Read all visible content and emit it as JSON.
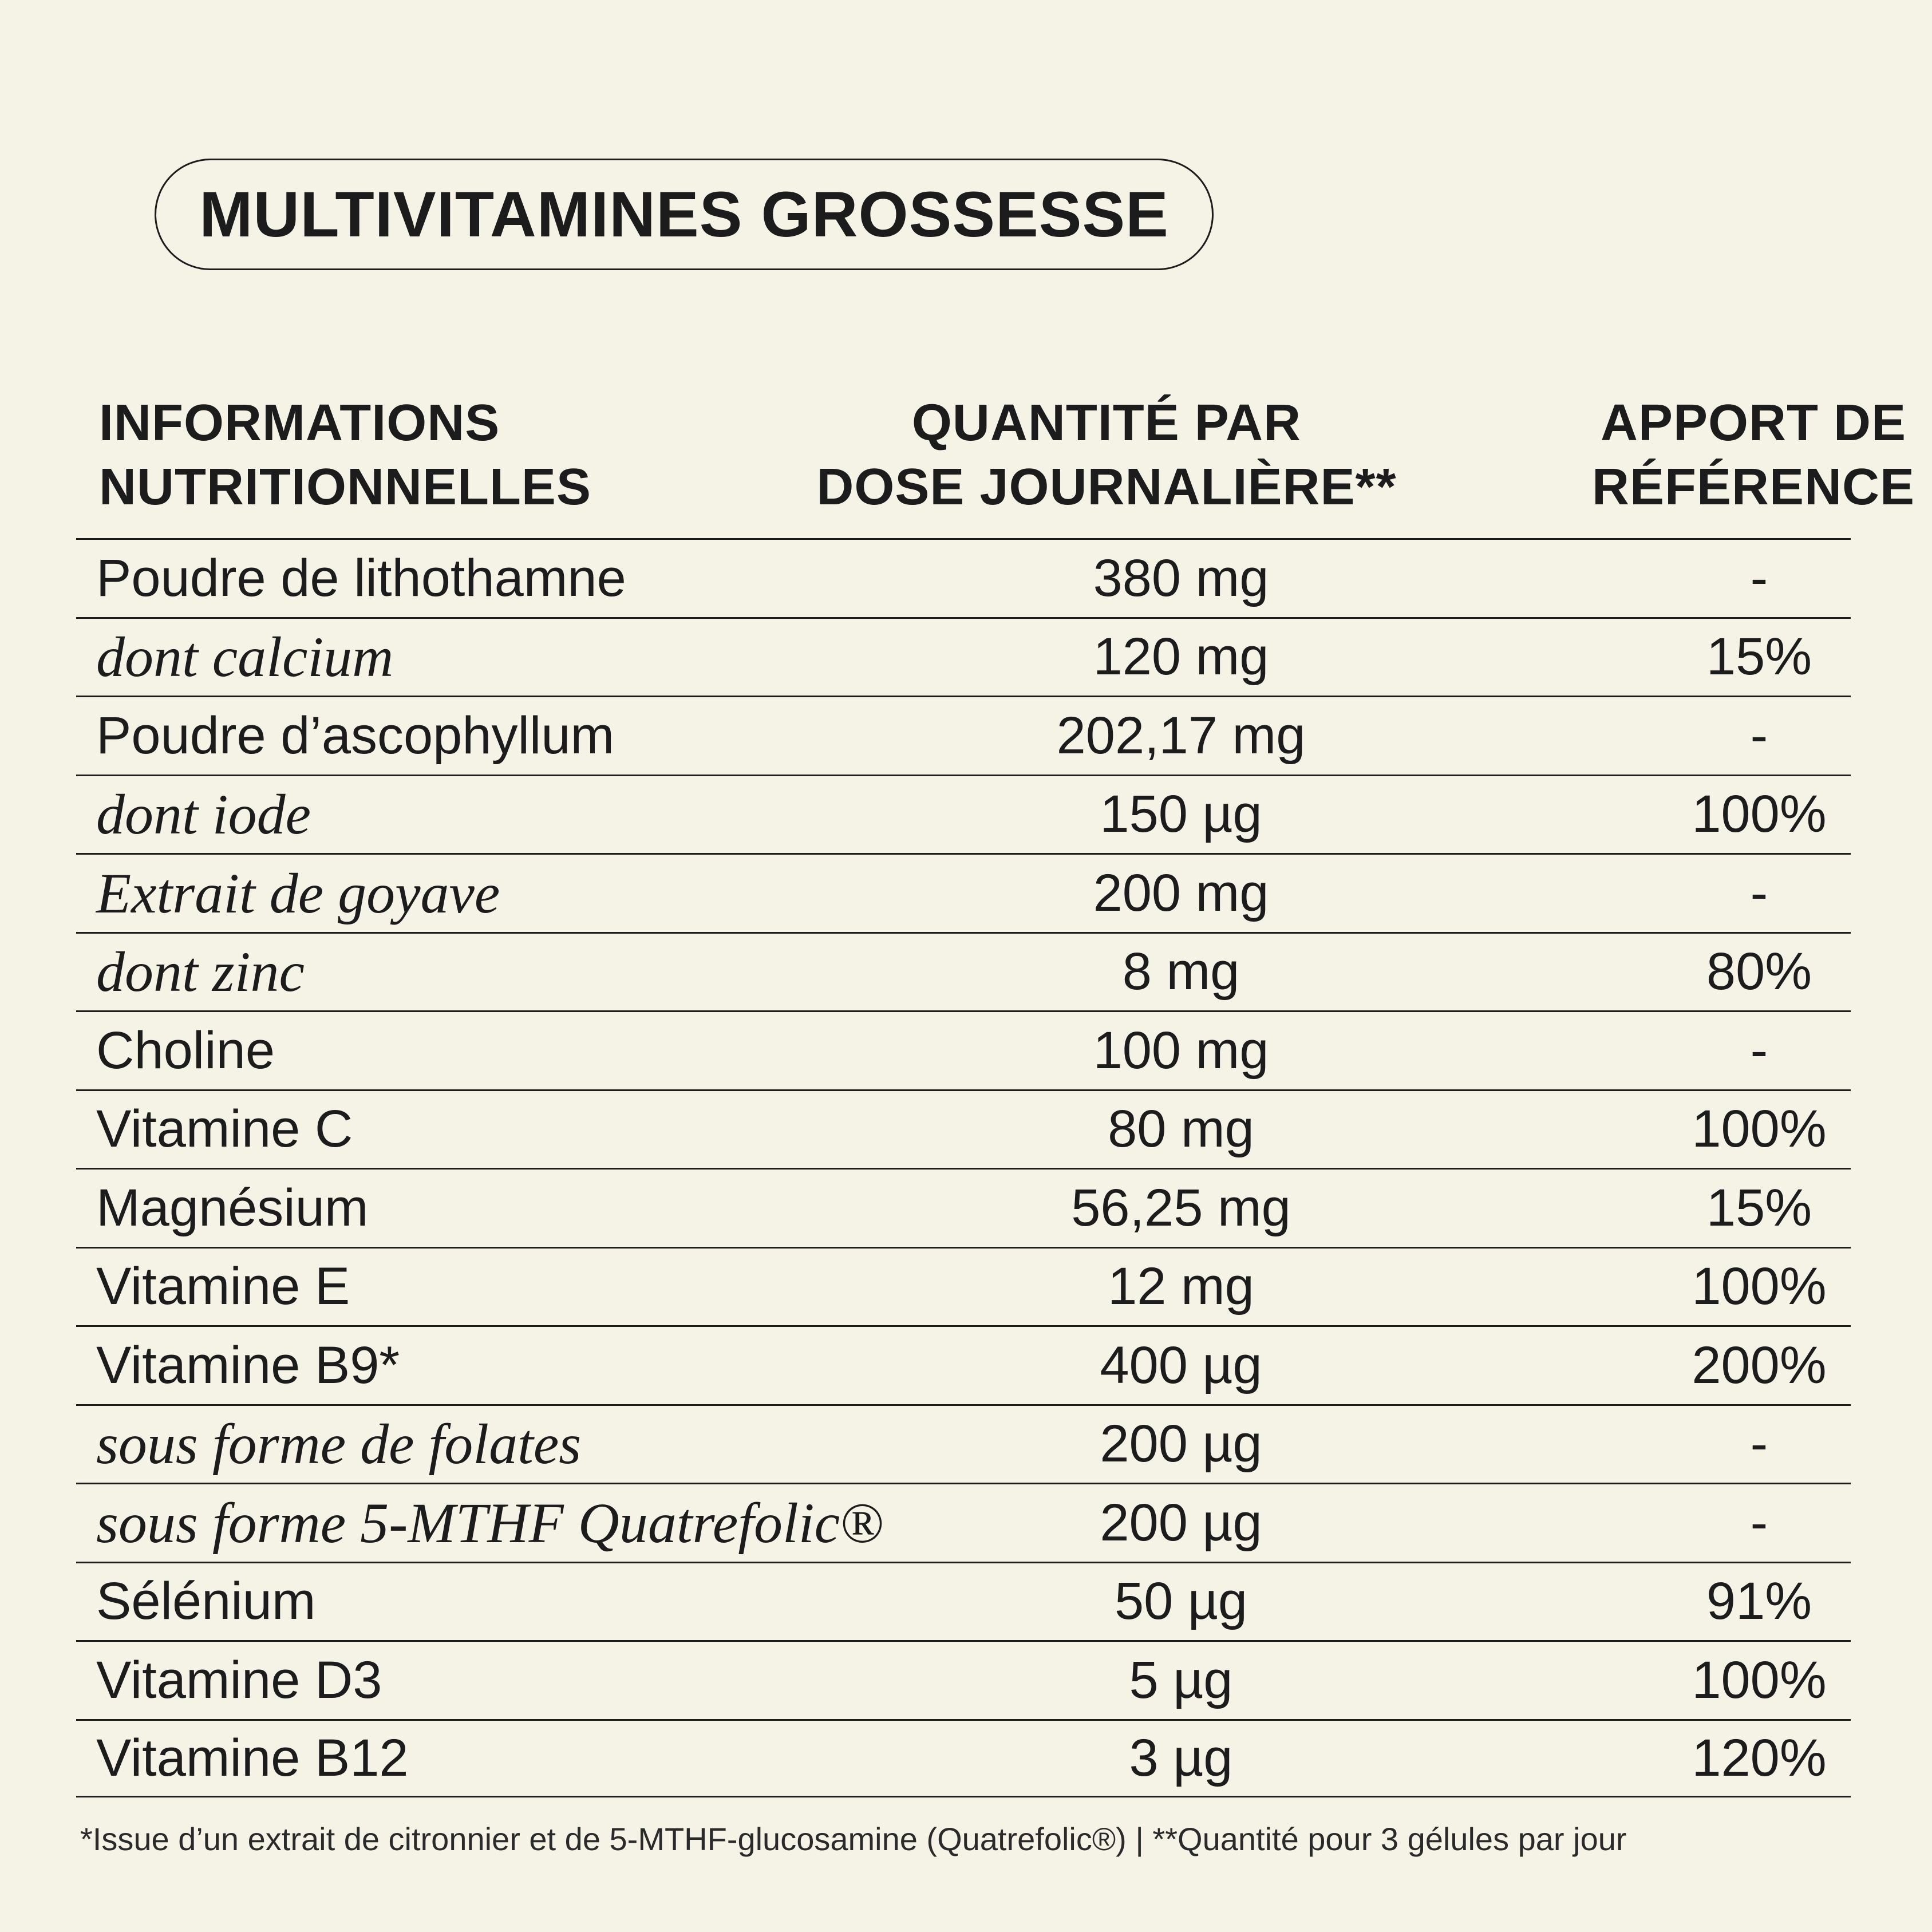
{
  "title": "MULTIVITAMINES GROSSESSE",
  "headers": {
    "col1": "INFORMATIONS\nNUTRITIONNELLES",
    "col2": "QUANTITÉ PAR\nDOSE JOURNALIÈRE**",
    "col3": "APPORT DE\nRÉFÉRENCE"
  },
  "rows": [
    {
      "name": "Poudre de lithothamne",
      "qty": "380 mg",
      "ref": "-",
      "italic": false
    },
    {
      "name": "dont calcium",
      "qty": "120 mg",
      "ref": "15%",
      "italic": true
    },
    {
      "name": "Poudre d’ascophyllum",
      "qty": "202,17 mg",
      "ref": "-",
      "italic": false
    },
    {
      "name": "dont iode",
      "qty": "150 µg",
      "ref": "100%",
      "italic": true
    },
    {
      "name": "Extrait de goyave",
      "qty": "200 mg",
      "ref": "-",
      "italic": true
    },
    {
      "name": "dont zinc",
      "qty": "8 mg",
      "ref": "80%",
      "italic": true
    },
    {
      "name": "Choline",
      "qty": "100 mg",
      "ref": "-",
      "italic": false
    },
    {
      "name": "Vitamine C",
      "qty": "80 mg",
      "ref": "100%",
      "italic": false
    },
    {
      "name": "Magnésium",
      "qty": "56,25 mg",
      "ref": "15%",
      "italic": false
    },
    {
      "name": "Vitamine E",
      "qty": "12 mg",
      "ref": "100%",
      "italic": false
    },
    {
      "name": "Vitamine B9*",
      "qty": "400 µg",
      "ref": "200%",
      "italic": false
    },
    {
      "name": "sous forme de folates",
      "qty": "200 µg",
      "ref": "-",
      "italic": true
    },
    {
      "name": "sous forme 5-MTHF Quatrefolic®",
      "qty": "200 µg",
      "ref": "-",
      "italic": true
    },
    {
      "name": "Sélénium",
      "qty": "50 µg",
      "ref": "91%",
      "italic": false
    },
    {
      "name": "Vitamine D3",
      "qty": "5 µg",
      "ref": "100%",
      "italic": false
    },
    {
      "name": "Vitamine B12",
      "qty": "3 µg",
      "ref": "120%",
      "italic": false
    }
  ],
  "footnote": "*Issue d’un extrait de citronnier et de 5-MTHF-glucosamine (Quatrefolic®) | **Quantité pour 3 gélules par jour"
}
